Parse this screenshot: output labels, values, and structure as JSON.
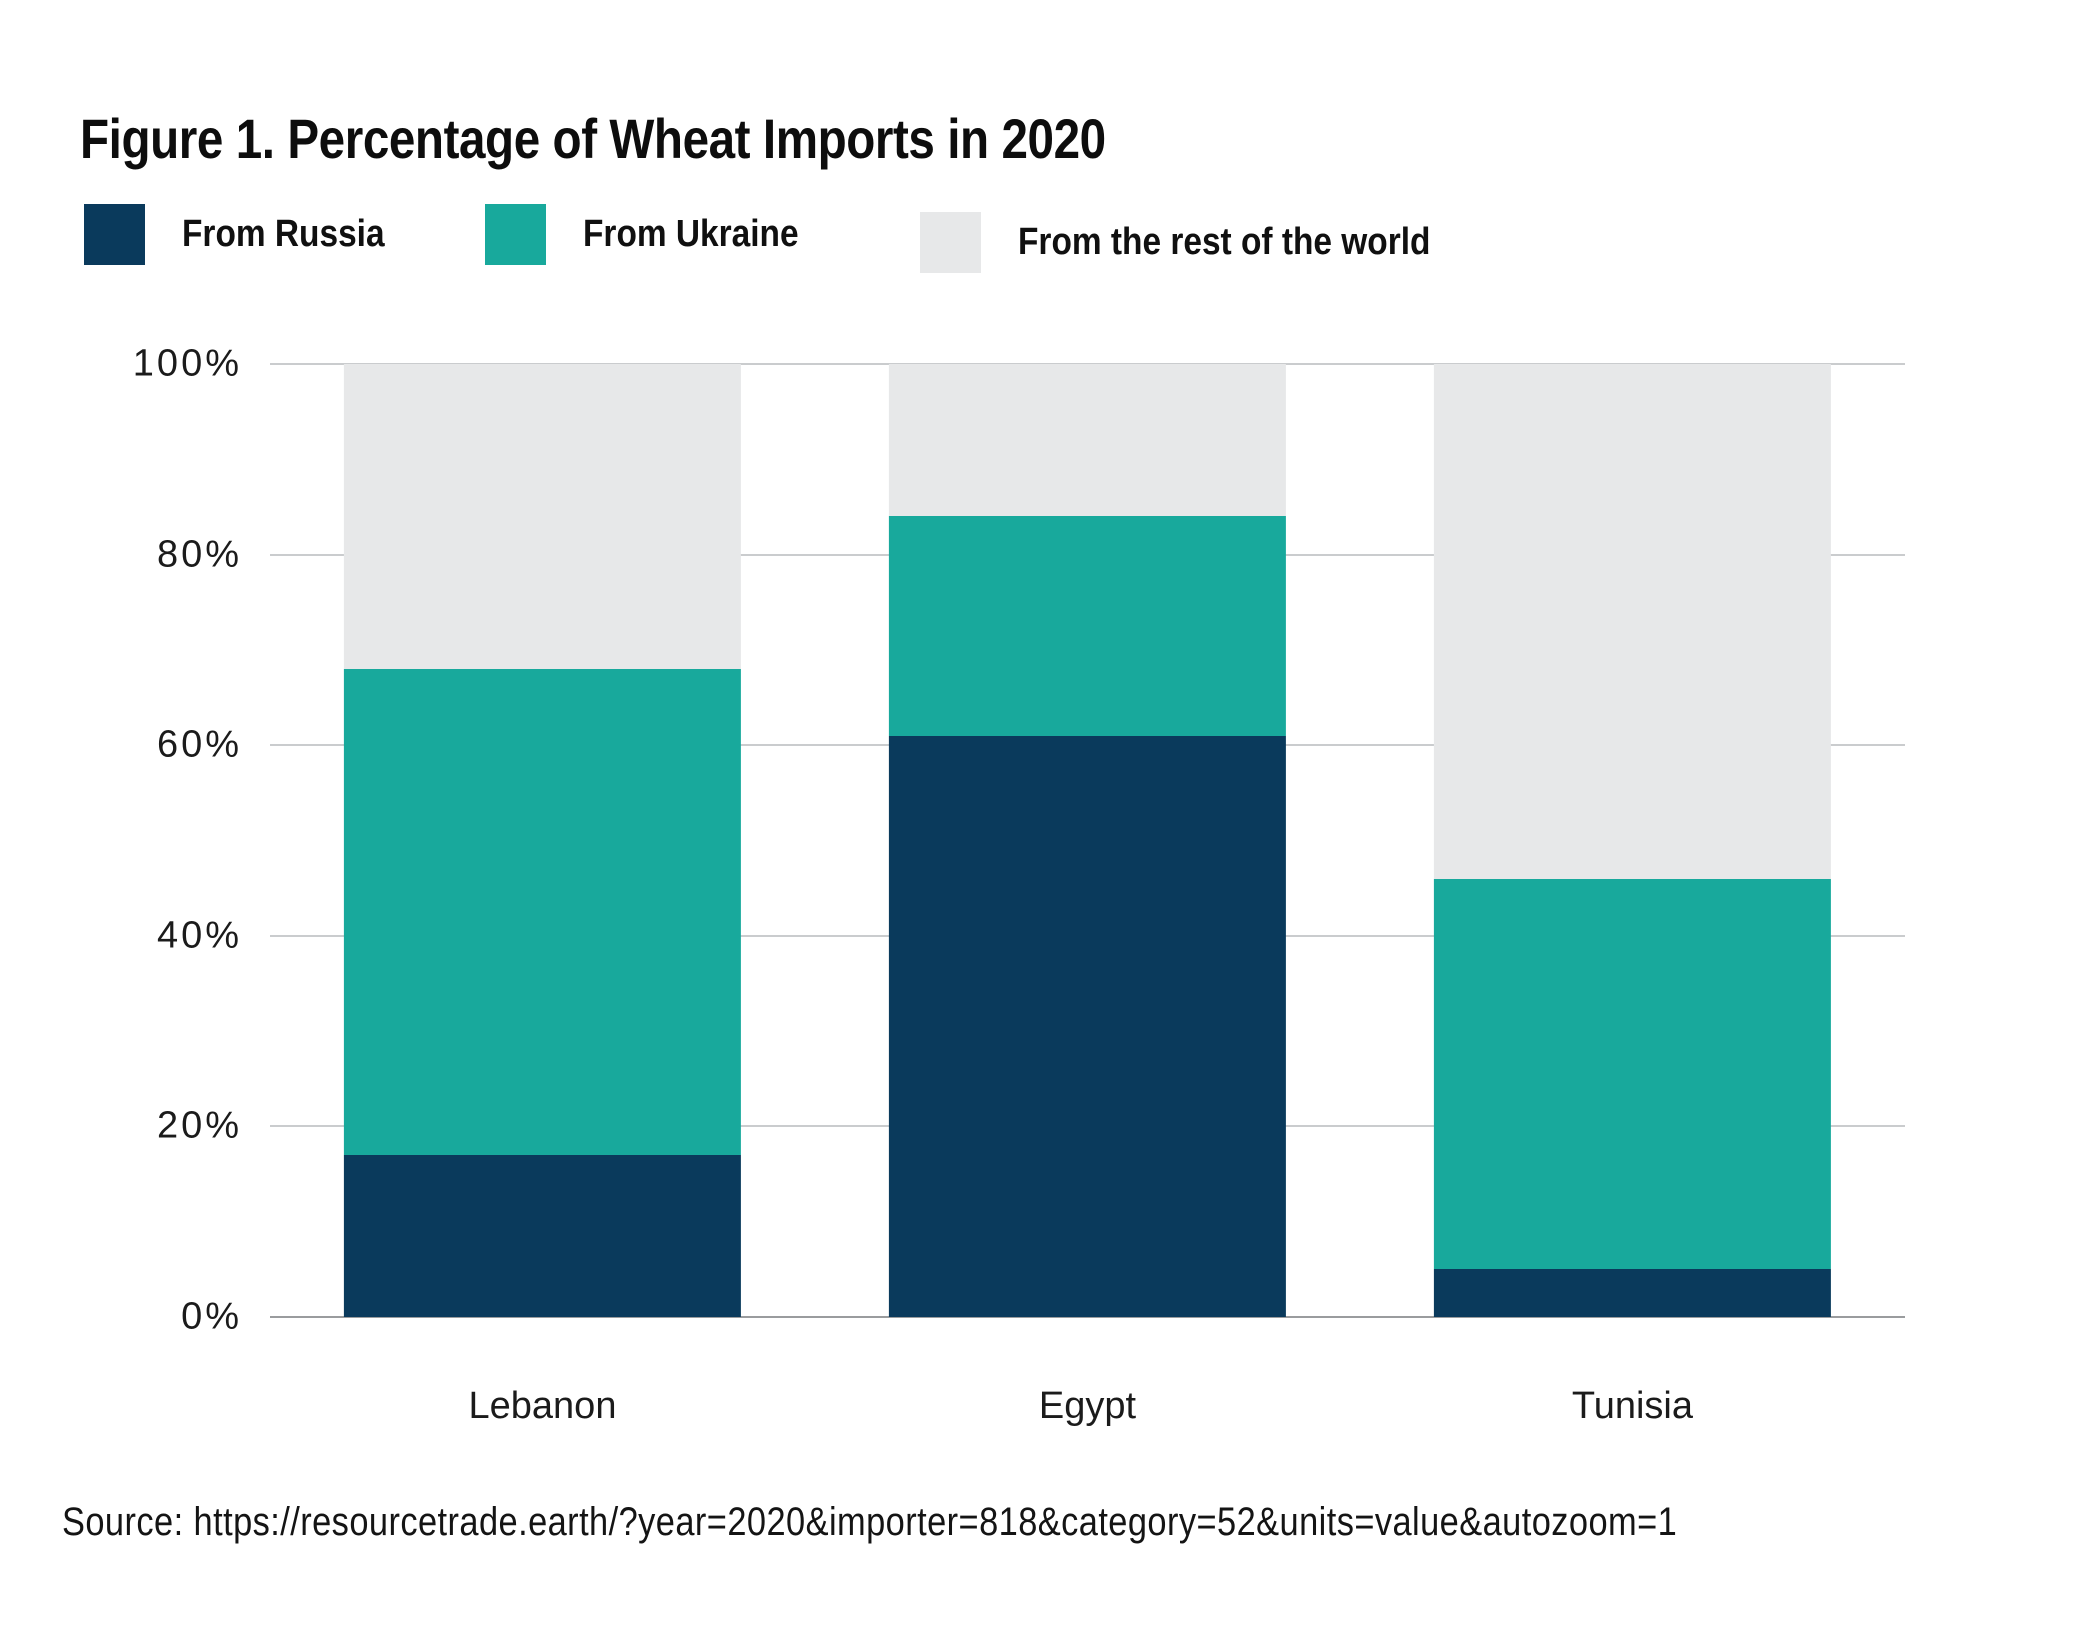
{
  "title": "Figure 1. Percentage of Wheat Imports in 2020",
  "legend": {
    "items": [
      {
        "label": "From Russia",
        "color": "#0a3a5c"
      },
      {
        "label": "From Ukraine",
        "color": "#18a99c"
      },
      {
        "label": "From the rest of the world",
        "color": "#e7e8e9"
      }
    ]
  },
  "source": "Source: https://resourcetrade.earth/?year=2020&importer=818&category=52&units=value&autozoom=1",
  "colors": {
    "russia": "#0a3a5c",
    "ukraine": "#18a99c",
    "rest_of_world": "#e7e8e9",
    "gridline": "#caccce",
    "axis_line": "#9a9c9e",
    "text": "#1b1b1b"
  },
  "chart_data": {
    "type": "bar",
    "stacked": true,
    "title": "Figure 1. Percentage of Wheat Imports in 2020",
    "categories": [
      "Lebanon",
      "Egypt",
      "Tunisia"
    ],
    "series": [
      {
        "name": "From Russia",
        "color": "#0a3a5c",
        "values": [
          17,
          61,
          5
        ]
      },
      {
        "name": "From Ukraine",
        "color": "#18a99c",
        "values": [
          51,
          23,
          41
        ]
      },
      {
        "name": "From the rest of the world",
        "color": "#e7e8e9",
        "values": [
          32,
          16,
          54
        ]
      }
    ],
    "xlabel": "",
    "ylabel": "",
    "ylim": [
      0,
      100
    ],
    "yticks": [
      0,
      20,
      40,
      60,
      80,
      100
    ],
    "ytick_format": "{v}%",
    "grid": true,
    "legend_position": "top"
  }
}
